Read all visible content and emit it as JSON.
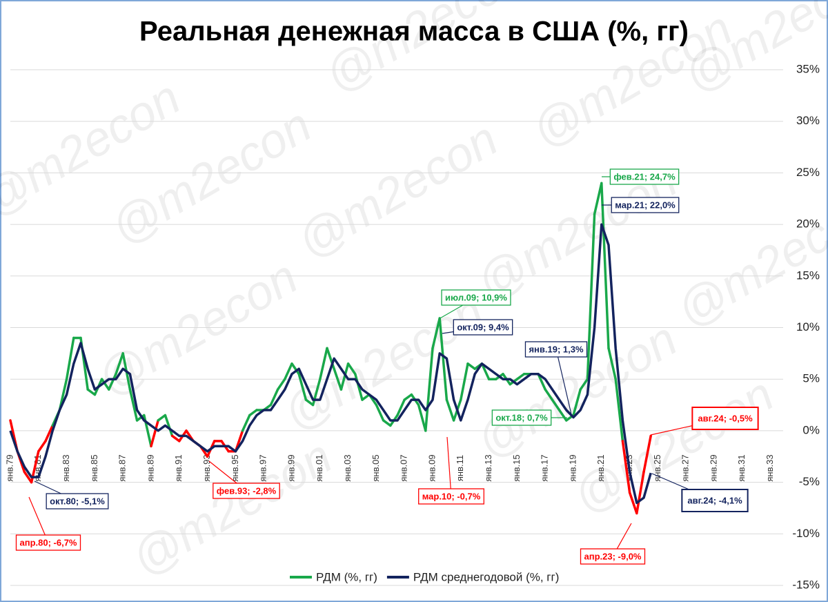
{
  "chart_data": {
    "type": "line",
    "title": "Реальная денежная масса в США (%, гг)",
    "watermark": "@m2econ",
    "categories": [
      "янв.79",
      null,
      null,
      null,
      "янв.81",
      null,
      null,
      null,
      "янв.83",
      null,
      null,
      null,
      "янв.85",
      null,
      null,
      null,
      "янв.87",
      null,
      null,
      null,
      "янв.89",
      null,
      null,
      null,
      "янв.91",
      null,
      null,
      null,
      "янв.93",
      null,
      null,
      null,
      "янв.95",
      null,
      null,
      null,
      "янв.97",
      null,
      null,
      null,
      "янв.99",
      null,
      null,
      null,
      "янв.01",
      null,
      null,
      null,
      "янв.03",
      null,
      null,
      null,
      "янв.05",
      null,
      null,
      null,
      "янв.07",
      null,
      null,
      null,
      "янв.09",
      null,
      null,
      null,
      "янв.11",
      null,
      null,
      null,
      "янв.13",
      null,
      null,
      null,
      "янв.15",
      null,
      null,
      null,
      "янв.17",
      null,
      null,
      null,
      "янв.19",
      null,
      null,
      null,
      "янв.21",
      null,
      null,
      null,
      "янв.23",
      null,
      null,
      null,
      "янв.25",
      null,
      null,
      null,
      "янв.27",
      null,
      null,
      null,
      "янв.29",
      null,
      null,
      null,
      "янв.31",
      null,
      null,
      null,
      "янв.33",
      null
    ],
    "series": [
      {
        "name": "РДМ (%, гг)",
        "color": "#19a84a",
        "negative_color": "#ff0000",
        "values": [
          1,
          -2,
          -4,
          -5,
          -2,
          -1,
          0.5,
          2,
          5,
          9,
          9,
          4,
          3.5,
          5,
          4,
          5.5,
          7.5,
          4,
          1,
          1.5,
          -1.5,
          1,
          1.5,
          -0.5,
          -1,
          0,
          -1,
          -1.5,
          -2.5,
          -1,
          -1,
          -2,
          -2,
          0,
          1.5,
          2,
          2,
          2.5,
          4,
          5,
          6.5,
          5.5,
          3,
          2.5,
          5,
          8,
          6,
          4,
          6.5,
          5.5,
          3,
          3.5,
          2.5,
          1,
          0.5,
          1.5,
          3,
          3.5,
          2.5,
          0,
          8,
          10.9,
          3,
          1,
          3,
          6.5,
          6,
          6.5,
          5,
          5,
          5.5,
          4.5,
          5,
          5.5,
          5.5,
          5.5,
          4,
          3,
          2,
          1,
          1.5,
          4,
          5,
          21,
          24,
          8,
          5,
          -1,
          -6,
          -8,
          -4,
          -0.5,
          null,
          null,
          null,
          null,
          null,
          null,
          null,
          null,
          null,
          null,
          null,
          null,
          null,
          null,
          null,
          null,
          null,
          null
        ]
      },
      {
        "name": "РДМ среднегодовой (%, гг)",
        "color": "#13235e",
        "values": [
          0,
          -2,
          -3.5,
          -4.5,
          -4.5,
          -2.5,
          0,
          2,
          3.5,
          6.5,
          8.5,
          6,
          4,
          4.5,
          5,
          5,
          6,
          5.5,
          2,
          1,
          0.5,
          0,
          0.5,
          0,
          -0.5,
          -0.5,
          -1,
          -1.5,
          -2,
          -1.5,
          -1.5,
          -1.5,
          -2,
          -1,
          0.5,
          1.5,
          2,
          2,
          3,
          4,
          5.5,
          6,
          4.5,
          3,
          3,
          5,
          7,
          6,
          5,
          5,
          4,
          3.5,
          3,
          2,
          1,
          1,
          2,
          3,
          3,
          2,
          3,
          7.5,
          7,
          3,
          1,
          3,
          5.5,
          6.5,
          6,
          5.5,
          5,
          5,
          4.5,
          5,
          5.5,
          5.5,
          5,
          4,
          3,
          2,
          1.3,
          2,
          3.5,
          10,
          20,
          18,
          8,
          1,
          -4,
          -7,
          -6.5,
          -4.1,
          null,
          null,
          null,
          null,
          null,
          null,
          null,
          null,
          null,
          null,
          null,
          null,
          null,
          null,
          null,
          null,
          null,
          null
        ]
      }
    ],
    "ylim": [
      -15,
      35
    ],
    "yticks": [
      {
        "value": -15,
        "label": "-15%"
      },
      {
        "value": -10,
        "label": "-10%"
      },
      {
        "value": -5,
        "label": "-5%"
      },
      {
        "value": 0,
        "label": "0%"
      },
      {
        "value": 5,
        "label": "5%"
      },
      {
        "value": 10,
        "label": "10%"
      },
      {
        "value": 15,
        "label": "15%"
      },
      {
        "value": 20,
        "label": "20%"
      },
      {
        "value": 25,
        "label": "25%"
      },
      {
        "value": 30,
        "label": "30%"
      },
      {
        "value": 35,
        "label": "35%"
      }
    ],
    "grid": true,
    "legend": "bottom",
    "annotations": [
      {
        "text": "фев.21; 24,7%",
        "color": "#19a84a"
      },
      {
        "text": "мар.21; 22,0%",
        "color": "#13235e"
      },
      {
        "text": "июл.09; 10,9%",
        "color": "#19a84a"
      },
      {
        "text": "окт.09; 9,4%",
        "color": "#13235e"
      },
      {
        "text": "янв.19; 1,3%",
        "color": "#13235e"
      },
      {
        "text": "окт.18; 0,7%",
        "color": "#19a84a"
      },
      {
        "text": "авг.24; -0,5%",
        "color": "#ff0000"
      },
      {
        "text": "авг.24; -4,1%",
        "color": "#13235e"
      },
      {
        "text": "апр.23; -9,0%",
        "color": "#ff0000"
      },
      {
        "text": "мар.10; -0,7%",
        "color": "#ff0000"
      },
      {
        "text": "фев.93; -2,8%",
        "color": "#ff0000"
      },
      {
        "text": "окт.80; -5,1%",
        "color": "#13235e"
      },
      {
        "text": "апр.80; -6,7%",
        "color": "#ff0000"
      }
    ]
  }
}
